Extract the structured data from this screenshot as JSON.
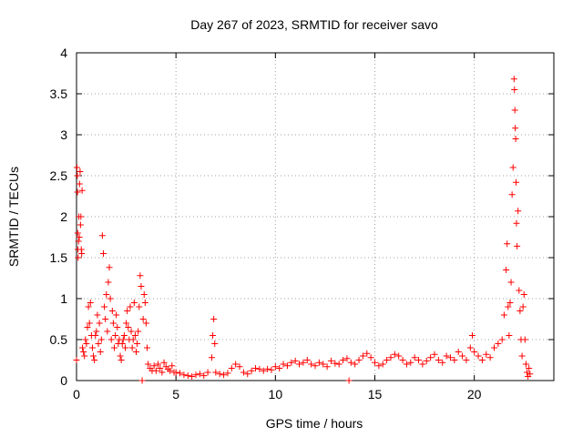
{
  "chart_data": {
    "type": "scatter",
    "title": "Day 267 of 2023, SRMTID for receiver savo",
    "xlabel": "GPS time / hours",
    "ylabel": "SRMTID / TECUs",
    "xlim": [
      0,
      24
    ],
    "ylim": [
      0,
      4
    ],
    "xticks": [
      {
        "v": 0,
        "label": "0"
      },
      {
        "v": 5,
        "label": "5"
      },
      {
        "v": 10,
        "label": "10"
      },
      {
        "v": 15,
        "label": "15"
      },
      {
        "v": 20,
        "label": "20"
      }
    ],
    "yticks": [
      {
        "v": 0,
        "label": "0"
      },
      {
        "v": 0.5,
        "label": "0.5"
      },
      {
        "v": 1,
        "label": "1"
      },
      {
        "v": 1.5,
        "label": "1.5"
      },
      {
        "v": 2,
        "label": "2"
      },
      {
        "v": 2.5,
        "label": "2.5"
      },
      {
        "v": 3,
        "label": "3"
      },
      {
        "v": 3.5,
        "label": "3.5"
      },
      {
        "v": 4,
        "label": "4"
      }
    ],
    "grid": true,
    "marker": "+",
    "color": "#ff0000",
    "series": [
      {
        "name": "savo",
        "points": [
          [
            0.0,
            0.25
          ],
          [
            0.02,
            2.6
          ],
          [
            0.04,
            2.5
          ],
          [
            0.05,
            2.3
          ],
          [
            0.06,
            1.8
          ],
          [
            0.07,
            1.6
          ],
          [
            0.08,
            1.5
          ],
          [
            0.1,
            1.7
          ],
          [
            0.12,
            2.0
          ],
          [
            0.14,
            1.75
          ],
          [
            0.15,
            2.4
          ],
          [
            0.18,
            2.55
          ],
          [
            0.2,
            1.9
          ],
          [
            0.22,
            2.0
          ],
          [
            0.24,
            1.6
          ],
          [
            0.26,
            1.55
          ],
          [
            0.28,
            2.32
          ],
          [
            0.3,
            0.4
          ],
          [
            0.35,
            0.35
          ],
          [
            0.4,
            0.3
          ],
          [
            0.45,
            0.5
          ],
          [
            0.5,
            0.45
          ],
          [
            0.55,
            0.65
          ],
          [
            0.6,
            0.9
          ],
          [
            0.65,
            0.7
          ],
          [
            0.7,
            0.95
          ],
          [
            0.75,
            0.55
          ],
          [
            0.8,
            0.4
          ],
          [
            0.85,
            0.3
          ],
          [
            0.9,
            0.25
          ],
          [
            0.95,
            0.55
          ],
          [
            1.0,
            0.6
          ],
          [
            1.05,
            0.8
          ],
          [
            1.1,
            0.45
          ],
          [
            1.15,
            0.7
          ],
          [
            1.2,
            0.35
          ],
          [
            1.25,
            0.5
          ],
          [
            1.3,
            1.77
          ],
          [
            1.35,
            1.55
          ],
          [
            1.4,
            0.9
          ],
          [
            1.45,
            0.75
          ],
          [
            1.5,
            1.05
          ],
          [
            1.55,
            0.6
          ],
          [
            1.6,
            1.2
          ],
          [
            1.65,
            1.38
          ],
          [
            1.7,
            1.0
          ],
          [
            1.75,
            0.5
          ],
          [
            1.8,
            0.85
          ],
          [
            1.85,
            0.7
          ],
          [
            1.9,
            0.4
          ],
          [
            1.95,
            0.55
          ],
          [
            2.0,
            0.8
          ],
          [
            2.05,
            0.65
          ],
          [
            2.1,
            0.45
          ],
          [
            2.15,
            0.5
          ],
          [
            2.2,
            0.3
          ],
          [
            2.25,
            0.25
          ],
          [
            2.3,
            0.45
          ],
          [
            2.35,
            0.5
          ],
          [
            2.4,
            0.55
          ],
          [
            2.45,
            0.4
          ],
          [
            2.5,
            0.7
          ],
          [
            2.55,
            0.85
          ],
          [
            2.6,
            0.65
          ],
          [
            2.65,
            0.5
          ],
          [
            2.7,
            0.9
          ],
          [
            2.75,
            0.6
          ],
          [
            2.8,
            0.4
          ],
          [
            2.85,
            0.5
          ],
          [
            2.9,
            0.95
          ],
          [
            2.95,
            0.55
          ],
          [
            3.0,
            0.35
          ],
          [
            3.05,
            0.45
          ],
          [
            3.1,
            0.6
          ],
          [
            3.15,
            0.9
          ],
          [
            3.2,
            1.28
          ],
          [
            3.25,
            1.15
          ],
          [
            3.3,
            0.0
          ],
          [
            3.35,
            0.75
          ],
          [
            3.4,
            1.05
          ],
          [
            3.45,
            0.95
          ],
          [
            3.5,
            0.7
          ],
          [
            3.55,
            0.4
          ],
          [
            3.6,
            0.2
          ],
          [
            3.7,
            0.15
          ],
          [
            3.8,
            0.12
          ],
          [
            3.9,
            0.18
          ],
          [
            4.0,
            0.12
          ],
          [
            4.1,
            0.2
          ],
          [
            4.2,
            0.15
          ],
          [
            4.3,
            0.1
          ],
          [
            4.4,
            0.22
          ],
          [
            4.5,
            0.17
          ],
          [
            4.6,
            0.14
          ],
          [
            4.7,
            0.12
          ],
          [
            4.8,
            0.18
          ],
          [
            4.9,
            0.1
          ],
          [
            5.0,
            0.1
          ],
          [
            5.2,
            0.09
          ],
          [
            5.4,
            0.07
          ],
          [
            5.6,
            0.06
          ],
          [
            5.8,
            0.05
          ],
          [
            6.0,
            0.07
          ],
          [
            6.2,
            0.08
          ],
          [
            6.4,
            0.06
          ],
          [
            6.6,
            0.1
          ],
          [
            6.8,
            0.28
          ],
          [
            6.85,
            0.55
          ],
          [
            6.9,
            0.75
          ],
          [
            6.95,
            0.45
          ],
          [
            7.0,
            0.1
          ],
          [
            7.2,
            0.08
          ],
          [
            7.4,
            0.07
          ],
          [
            7.6,
            0.09
          ],
          [
            7.8,
            0.15
          ],
          [
            8.0,
            0.2
          ],
          [
            8.2,
            0.17
          ],
          [
            8.4,
            0.1
          ],
          [
            8.6,
            0.08
          ],
          [
            8.8,
            0.12
          ],
          [
            9.0,
            0.15
          ],
          [
            9.2,
            0.14
          ],
          [
            9.4,
            0.12
          ],
          [
            9.6,
            0.14
          ],
          [
            9.8,
            0.13
          ],
          [
            10.0,
            0.17
          ],
          [
            10.2,
            0.15
          ],
          [
            10.4,
            0.2
          ],
          [
            10.6,
            0.18
          ],
          [
            10.8,
            0.22
          ],
          [
            11.0,
            0.24
          ],
          [
            11.2,
            0.2
          ],
          [
            11.4,
            0.22
          ],
          [
            11.6,
            0.25
          ],
          [
            11.8,
            0.2
          ],
          [
            12.0,
            0.18
          ],
          [
            12.2,
            0.22
          ],
          [
            12.4,
            0.2
          ],
          [
            12.6,
            0.17
          ],
          [
            12.8,
            0.24
          ],
          [
            13.0,
            0.21
          ],
          [
            13.2,
            0.2
          ],
          [
            13.4,
            0.25
          ],
          [
            13.6,
            0.27
          ],
          [
            13.7,
            0.0
          ],
          [
            13.8,
            0.22
          ],
          [
            14.0,
            0.2
          ],
          [
            14.2,
            0.25
          ],
          [
            14.4,
            0.3
          ],
          [
            14.6,
            0.33
          ],
          [
            14.8,
            0.28
          ],
          [
            15.0,
            0.22
          ],
          [
            15.2,
            0.18
          ],
          [
            15.4,
            0.2
          ],
          [
            15.6,
            0.25
          ],
          [
            15.8,
            0.28
          ],
          [
            16.0,
            0.32
          ],
          [
            16.2,
            0.3
          ],
          [
            16.4,
            0.25
          ],
          [
            16.6,
            0.2
          ],
          [
            16.8,
            0.22
          ],
          [
            17.0,
            0.28
          ],
          [
            17.2,
            0.25
          ],
          [
            17.4,
            0.2
          ],
          [
            17.6,
            0.24
          ],
          [
            17.8,
            0.28
          ],
          [
            18.0,
            0.32
          ],
          [
            18.2,
            0.25
          ],
          [
            18.4,
            0.22
          ],
          [
            18.6,
            0.3
          ],
          [
            18.8,
            0.28
          ],
          [
            19.0,
            0.25
          ],
          [
            19.2,
            0.35
          ],
          [
            19.4,
            0.3
          ],
          [
            19.6,
            0.25
          ],
          [
            19.8,
            0.4
          ],
          [
            19.9,
            0.55
          ],
          [
            20.0,
            0.35
          ],
          [
            20.2,
            0.3
          ],
          [
            20.4,
            0.25
          ],
          [
            20.6,
            0.32
          ],
          [
            20.8,
            0.28
          ],
          [
            21.0,
            0.4
          ],
          [
            21.2,
            0.45
          ],
          [
            21.4,
            0.5
          ],
          [
            21.5,
            0.8
          ],
          [
            21.6,
            1.35
          ],
          [
            21.65,
            1.67
          ],
          [
            21.7,
            0.9
          ],
          [
            21.75,
            0.55
          ],
          [
            21.8,
            0.95
          ],
          [
            21.85,
            1.2
          ],
          [
            21.9,
            2.27
          ],
          [
            21.95,
            2.6
          ],
          [
            22.0,
            3.68
          ],
          [
            22.02,
            3.55
          ],
          [
            22.04,
            3.3
          ],
          [
            22.06,
            3.08
          ],
          [
            22.08,
            2.95
          ],
          [
            22.1,
            2.42
          ],
          [
            22.12,
            1.92
          ],
          [
            22.15,
            1.64
          ],
          [
            22.2,
            2.07
          ],
          [
            22.25,
            1.1
          ],
          [
            22.3,
            0.85
          ],
          [
            22.35,
            0.5
          ],
          [
            22.4,
            0.3
          ],
          [
            22.45,
            0.9
          ],
          [
            22.5,
            1.05
          ],
          [
            22.55,
            0.5
          ],
          [
            22.6,
            0.2
          ],
          [
            22.65,
            0.1
          ],
          [
            22.7,
            0.05
          ],
          [
            22.75,
            0.15
          ],
          [
            22.8,
            0.08
          ]
        ]
      }
    ]
  }
}
